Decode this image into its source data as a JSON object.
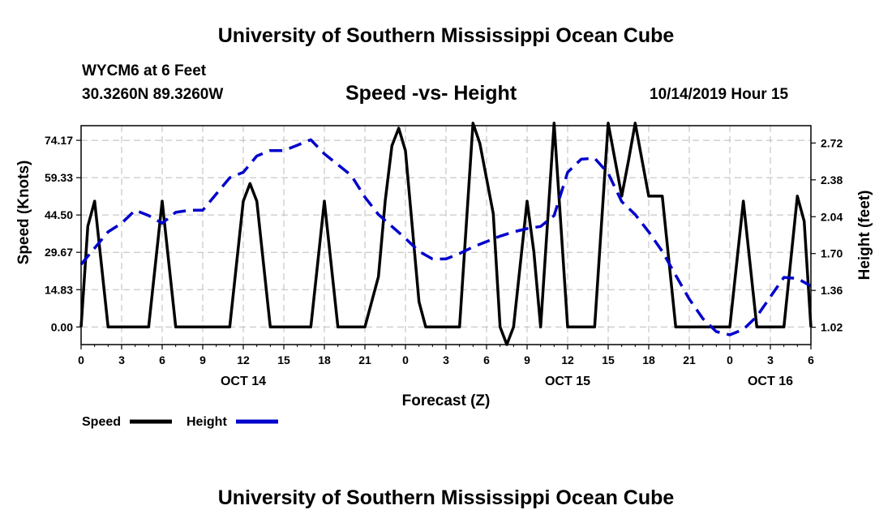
{
  "header": {
    "title": "University of Southern Mississippi Ocean Cube",
    "station": "WYCM6 at 6 Feet",
    "coordinates": "30.3260N 89.3260W",
    "chart_title": "Speed -vs- Height",
    "datetime": "10/14/2019 Hour 15"
  },
  "footer": {
    "title": "University of Southern Mississippi Ocean Cube"
  },
  "colors": {
    "speed": "#000000",
    "height": "#0000cc",
    "grid": "#bbbbbb"
  },
  "chart_data": {
    "type": "line",
    "title": "Speed -vs- Height",
    "xlabel": "Forecast (Z)",
    "ylabel": "Speed (Knots)",
    "y2label": "Height (feet)",
    "xlim": [
      0,
      54
    ],
    "ylim": [
      -7,
      80
    ],
    "y2lim": [
      0.86,
      2.88
    ],
    "x_ticks": [
      0,
      3,
      6,
      9,
      12,
      15,
      18,
      21,
      24,
      27,
      30,
      33,
      36,
      39,
      42,
      45,
      48,
      51,
      54
    ],
    "x_tick_labels": [
      "0",
      "3",
      "6",
      "9",
      "12",
      "15",
      "18",
      "21",
      "0",
      "3",
      "6",
      "9",
      "12",
      "15",
      "18",
      "21",
      "0",
      "3",
      "6"
    ],
    "date_labels": [
      {
        "x": 12,
        "label": "OCT 14"
      },
      {
        "x": 36,
        "label": "OCT 15"
      },
      {
        "x": 51,
        "label": "OCT 16"
      }
    ],
    "y_ticks": [
      0.0,
      14.83,
      29.67,
      44.5,
      59.33,
      74.17
    ],
    "y_tick_labels": [
      "0.00",
      "14.83",
      "29.67",
      "44.50",
      "59.33",
      "74.17"
    ],
    "y2_ticks": [
      1.02,
      1.36,
      1.7,
      2.04,
      2.38,
      2.72
    ],
    "y2_tick_labels": [
      "1.02",
      "1.36",
      "1.70",
      "2.04",
      "2.38",
      "2.72"
    ],
    "grid": true,
    "legend_position": "bottom-left",
    "series": [
      {
        "name": "Speed",
        "axis": "left",
        "style": "solid",
        "points": [
          [
            0,
            0
          ],
          [
            0.5,
            40
          ],
          [
            1,
            50
          ],
          [
            2,
            0
          ],
          [
            5,
            0
          ],
          [
            6,
            50
          ],
          [
            7,
            0
          ],
          [
            11,
            0
          ],
          [
            12,
            50
          ],
          [
            12.5,
            57
          ],
          [
            13,
            50
          ],
          [
            14,
            0
          ],
          [
            17,
            0
          ],
          [
            18,
            50
          ],
          [
            19,
            0
          ],
          [
            21,
            0
          ],
          [
            22,
            20
          ],
          [
            22.5,
            50
          ],
          [
            23,
            72
          ],
          [
            23.5,
            79
          ],
          [
            24,
            70
          ],
          [
            25,
            10
          ],
          [
            25.5,
            0
          ],
          [
            28,
            0
          ],
          [
            29,
            81
          ],
          [
            29.5,
            73
          ],
          [
            30.5,
            45
          ],
          [
            31,
            0
          ],
          [
            31.5,
            -7
          ],
          [
            32,
            0
          ],
          [
            33,
            50
          ],
          [
            33.5,
            30
          ],
          [
            34,
            0
          ],
          [
            35,
            81
          ],
          [
            36,
            0
          ],
          [
            38,
            0
          ],
          [
            39,
            81
          ],
          [
            40,
            52
          ],
          [
            40.5,
            66
          ],
          [
            41,
            81
          ],
          [
            42,
            52
          ],
          [
            43,
            52
          ],
          [
            44,
            0
          ],
          [
            47,
            0
          ],
          [
            48,
            0
          ],
          [
            49,
            50
          ],
          [
            50,
            0
          ],
          [
            52,
            0
          ],
          [
            53,
            52
          ],
          [
            53.5,
            42
          ],
          [
            54,
            0
          ]
        ]
      },
      {
        "name": "Height",
        "axis": "right",
        "style": "dashed",
        "points": [
          [
            0,
            1.6
          ],
          [
            1,
            1.75
          ],
          [
            2,
            1.9
          ],
          [
            3,
            1.98
          ],
          [
            4,
            2.1
          ],
          [
            5,
            2.05
          ],
          [
            6,
            1.98
          ],
          [
            7,
            2.08
          ],
          [
            8,
            2.1
          ],
          [
            9,
            2.1
          ],
          [
            10,
            2.25
          ],
          [
            11,
            2.4
          ],
          [
            12,
            2.45
          ],
          [
            13,
            2.6
          ],
          [
            14,
            2.65
          ],
          [
            15,
            2.65
          ],
          [
            16,
            2.7
          ],
          [
            17,
            2.75
          ],
          [
            18,
            2.62
          ],
          [
            19,
            2.52
          ],
          [
            20,
            2.42
          ],
          [
            21,
            2.22
          ],
          [
            22,
            2.06
          ],
          [
            23,
            1.95
          ],
          [
            24,
            1.84
          ],
          [
            25,
            1.72
          ],
          [
            26,
            1.65
          ],
          [
            27,
            1.65
          ],
          [
            28,
            1.7
          ],
          [
            29,
            1.76
          ],
          [
            30,
            1.81
          ],
          [
            31,
            1.86
          ],
          [
            32,
            1.9
          ],
          [
            33,
            1.93
          ],
          [
            34,
            1.95
          ],
          [
            35,
            2.05
          ],
          [
            36,
            2.45
          ],
          [
            37,
            2.57
          ],
          [
            38,
            2.58
          ],
          [
            39,
            2.44
          ],
          [
            40,
            2.18
          ],
          [
            41,
            2.06
          ],
          [
            42,
            1.9
          ],
          [
            43,
            1.72
          ],
          [
            44,
            1.5
          ],
          [
            45,
            1.28
          ],
          [
            46,
            1.1
          ],
          [
            47,
            0.98
          ],
          [
            48,
            0.95
          ],
          [
            49,
            1.0
          ],
          [
            50,
            1.12
          ],
          [
            51,
            1.3
          ],
          [
            52,
            1.48
          ],
          [
            53,
            1.47
          ],
          [
            54,
            1.4
          ]
        ]
      }
    ]
  }
}
